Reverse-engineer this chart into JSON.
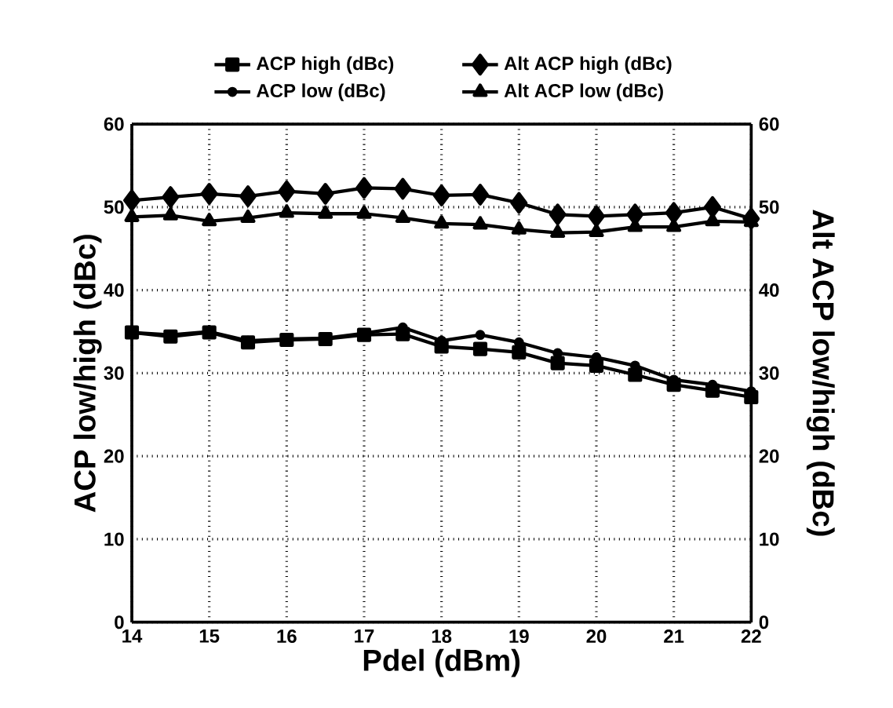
{
  "chart_data": {
    "type": "line",
    "xlabel": "Pdel (dBm)",
    "ylabel": "ACP low/high (dBc)",
    "y2label": "Alt ACP low/high (dBc)",
    "xlim": [
      14,
      22
    ],
    "xticks": [
      14,
      15,
      16,
      17,
      18,
      19,
      20,
      21,
      22
    ],
    "ylim": [
      0,
      60
    ],
    "yticks": [
      0,
      10,
      20,
      30,
      40,
      50,
      60
    ],
    "y2lim": [
      0,
      60
    ],
    "y2ticks": [
      0,
      10,
      20,
      30,
      40,
      50,
      60
    ],
    "grid": true,
    "legend": "top",
    "line_style": "solid",
    "series": [
      {
        "name": "ACP high (dBc)",
        "color": "#000000",
        "marker": "square",
        "x": [
          14,
          14.5,
          15,
          15.5,
          16,
          16.5,
          17,
          17.5,
          18,
          18.5,
          19,
          19.5,
          20,
          20.5,
          21,
          21.5,
          22
        ],
        "values": [
          34.9,
          34.4,
          34.9,
          33.7,
          34.0,
          34.1,
          34.6,
          34.7,
          33.2,
          32.9,
          32.5,
          31.2,
          30.9,
          29.8,
          28.6,
          27.9,
          27.1
        ]
      },
      {
        "name": "ACP low (dBc)",
        "color": "#000000",
        "marker": "circle",
        "x": [
          14,
          14.5,
          15,
          15.5,
          16,
          16.5,
          17,
          17.5,
          18,
          18.5,
          19,
          19.5,
          20,
          20.5,
          21,
          21.5,
          22
        ],
        "values": [
          34.9,
          34.6,
          35.0,
          33.9,
          34.1,
          34.2,
          34.8,
          35.5,
          33.9,
          34.6,
          33.7,
          32.4,
          31.9,
          30.9,
          29.2,
          28.6,
          27.8
        ]
      },
      {
        "name": "Alt ACP high (dBc)",
        "color": "#000000",
        "marker": "diamond",
        "axis": "y2",
        "x": [
          14,
          14.5,
          15,
          15.5,
          16,
          16.5,
          17,
          17.5,
          18,
          18.5,
          19,
          19.5,
          20,
          20.5,
          21,
          21.5,
          22
        ],
        "values": [
          50.8,
          51.2,
          51.6,
          51.3,
          51.9,
          51.6,
          52.3,
          52.2,
          51.4,
          51.5,
          50.5,
          49.1,
          48.9,
          49.1,
          49.3,
          50.0,
          48.6
        ]
      },
      {
        "name": "Alt ACP low (dBc)",
        "color": "#000000",
        "marker": "triangle",
        "axis": "y2",
        "x": [
          14,
          14.5,
          15,
          15.5,
          16,
          16.5,
          17,
          17.5,
          18,
          18.5,
          19,
          19.5,
          20,
          20.5,
          21,
          21.5,
          22
        ],
        "values": [
          48.8,
          49.0,
          48.3,
          48.7,
          49.3,
          49.2,
          49.2,
          48.7,
          48.0,
          47.9,
          47.3,
          46.9,
          47.0,
          47.6,
          47.6,
          48.3,
          48.2
        ]
      }
    ]
  }
}
